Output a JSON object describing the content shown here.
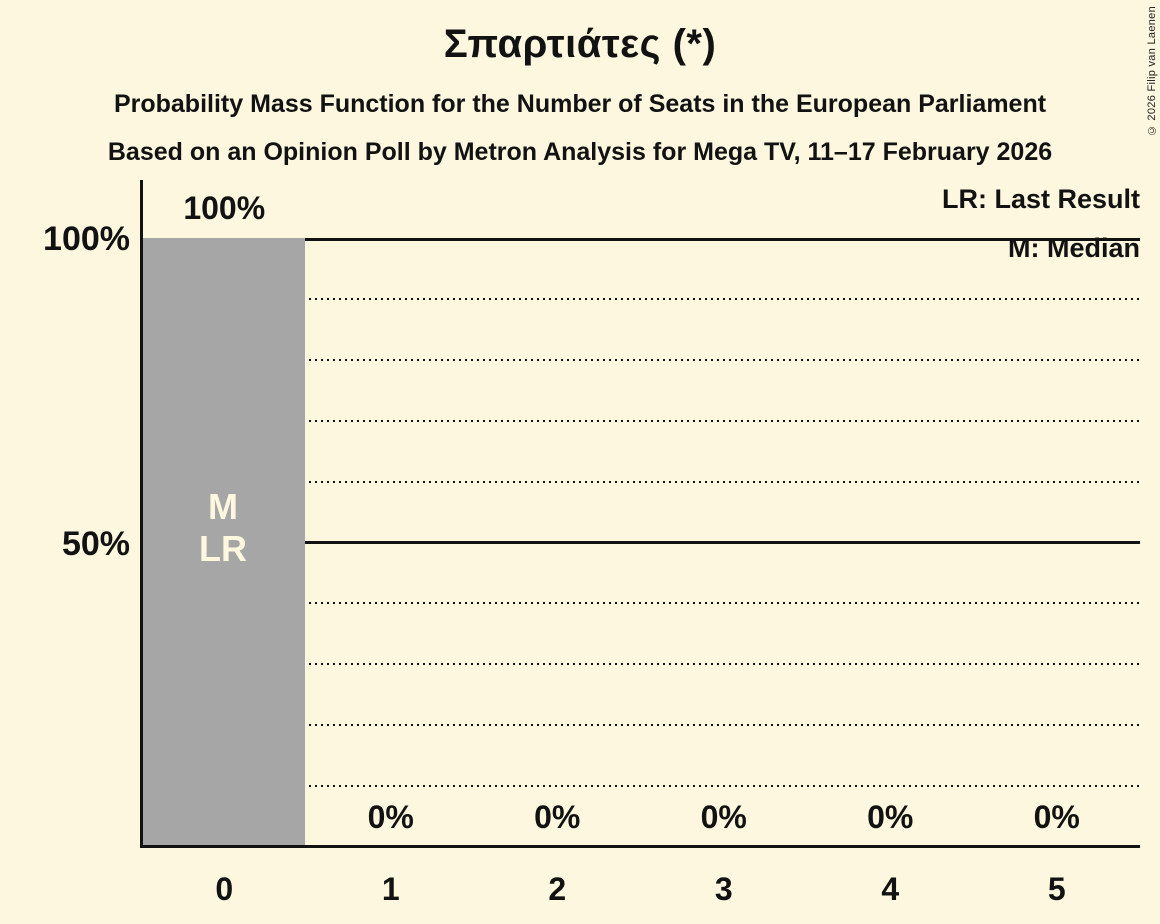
{
  "chart_data": {
    "type": "bar",
    "title": "Σπαρτιάτες (*)",
    "subtitle1": "Probability Mass Function for the Number of Seats in the European Parliament",
    "subtitle2": "Based on an Opinion Poll by Metron Analysis for Mega TV, 11–17 February 2026",
    "categories": [
      "0",
      "1",
      "2",
      "3",
      "4",
      "5"
    ],
    "values": [
      100,
      0,
      0,
      0,
      0,
      0
    ],
    "value_labels": [
      "100%",
      "0%",
      "0%",
      "0%",
      "0%",
      "0%"
    ],
    "bar_annotations": [
      [
        "M",
        "LR"
      ],
      [],
      [],
      [],
      [],
      []
    ],
    "ylim": [
      0,
      100
    ],
    "yticks": [
      {
        "pct": 100,
        "label": "100%"
      },
      {
        "pct": 50,
        "label": "50%"
      }
    ],
    "solid_gridlines_pct": [
      100,
      50
    ],
    "dotted_gridlines_pct": [
      90,
      80,
      70,
      60,
      40,
      30,
      20,
      10
    ],
    "legend": {
      "lr": "LR: Last Result",
      "m": "M: Median"
    },
    "copyright": "© 2026 Filip van Laenen",
    "colors": {
      "background": "#fcf7de",
      "bar": "#a6a6a6",
      "text": "#121212",
      "bar_annotation_text": "#fcf7de",
      "line": "#121212"
    }
  }
}
